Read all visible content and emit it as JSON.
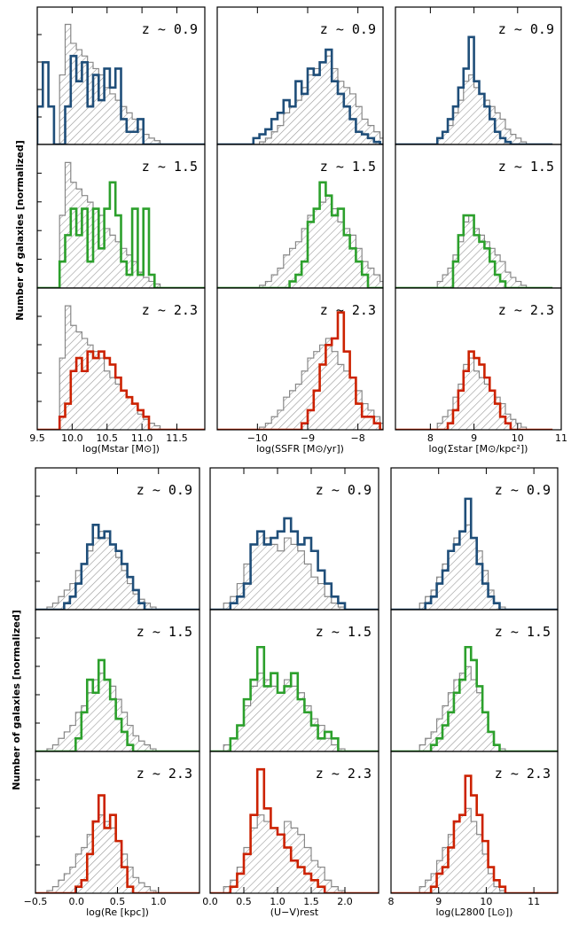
{
  "figure": {
    "ylabel_top": "Number of galaxies [normalized]",
    "ylabel_bottom": "Number of galaxies [normalized]",
    "redshift_labels": [
      "z ~ 0.9",
      "z ~ 1.5",
      "z ~ 2.3"
    ],
    "redshift_colors": [
      "#1f4e79",
      "#2ca02c",
      "#cc2200"
    ],
    "reference_hist_color": "#888888"
  },
  "chart_data": [
    {
      "type": "bar",
      "xlabel": "log(Mstar [M⊙])",
      "xlim": [
        9.5,
        11.9
      ],
      "ticks": [
        9.5,
        10.0,
        10.5,
        11.0,
        11.5
      ],
      "tick_labels": [
        "9.5",
        "10.0",
        "10.5",
        "11.0",
        "11.5"
      ],
      "bin_start": 9.5,
      "bin_width": 0.08,
      "reference": [
        0,
        0,
        0,
        0,
        0.55,
        0.95,
        0.8,
        0.75,
        0.7,
        0.65,
        0.6,
        0.55,
        0.45,
        0.4,
        0.35,
        0.3,
        0.25,
        0.2,
        0.12,
        0.08,
        0.05,
        0.03,
        0,
        0,
        0,
        0,
        0,
        0,
        0,
        0
      ],
      "series": [
        {
          "name": "z ~ 0.9",
          "values": [
            0.3,
            0.65,
            0.3,
            0,
            0,
            0.3,
            0.7,
            0.5,
            0.65,
            0.3,
            0.55,
            0.35,
            0.6,
            0.45,
            0.6,
            0.2,
            0.1,
            0.1,
            0.2,
            0,
            0,
            0,
            0,
            0,
            0,
            0,
            0,
            0,
            0,
            0
          ]
        },
        {
          "name": "z ~ 1.5",
          "values": [
            0,
            0,
            0,
            0,
            0.2,
            0.4,
            0.6,
            0.4,
            0.6,
            0.2,
            0.6,
            0.3,
            0.6,
            0.8,
            0.55,
            0.2,
            0.1,
            0.6,
            0.1,
            0.6,
            0.1,
            0,
            0,
            0,
            0,
            0,
            0,
            0,
            0,
            0
          ]
        },
        {
          "name": "z ~ 2.3",
          "values": [
            0,
            0,
            0,
            0,
            0.1,
            0.2,
            0.45,
            0.55,
            0.45,
            0.6,
            0.55,
            0.6,
            0.55,
            0.5,
            0.4,
            0.3,
            0.25,
            0.2,
            0.15,
            0.1,
            0,
            0,
            0,
            0,
            0,
            0,
            0,
            0,
            0,
            0
          ]
        }
      ]
    },
    {
      "type": "bar",
      "xlabel": "log(SSFR [M⊙/yr])",
      "xlim": [
        -10.8,
        -7.5
      ],
      "ticks": [
        -10,
        -9,
        -8
      ],
      "tick_labels": [
        "−10",
        "−9",
        "−8"
      ],
      "bin_start": -10.8,
      "bin_width": 0.12,
      "reference": [
        0,
        0,
        0,
        0,
        0,
        0,
        0,
        0.02,
        0.05,
        0.1,
        0.15,
        0.25,
        0.3,
        0.35,
        0.45,
        0.55,
        0.6,
        0.65,
        0.7,
        0.6,
        0.5,
        0.45,
        0.4,
        0.3,
        0.2,
        0.15,
        0.1,
        0.05,
        0,
        0
      ],
      "series": [
        {
          "name": "z ~ 0.9",
          "values": [
            0,
            0,
            0,
            0,
            0,
            0,
            0.05,
            0.08,
            0.12,
            0.2,
            0.25,
            0.35,
            0.3,
            0.5,
            0.4,
            0.6,
            0.55,
            0.65,
            0.75,
            0.5,
            0.4,
            0.3,
            0.2,
            0.1,
            0.08,
            0.05,
            0.02,
            0,
            0,
            0
          ]
        },
        {
          "name": "z ~ 1.5",
          "values": [
            0,
            0,
            0,
            0,
            0,
            0,
            0,
            0,
            0,
            0,
            0,
            0,
            0.05,
            0.1,
            0.2,
            0.5,
            0.6,
            0.8,
            0.7,
            0.55,
            0.6,
            0.4,
            0.3,
            0.2,
            0.1,
            0,
            0,
            0,
            0,
            0
          ]
        },
        {
          "name": "z ~ 2.3",
          "values": [
            0,
            0,
            0,
            0,
            0,
            0,
            0,
            0,
            0,
            0,
            0,
            0,
            0,
            0,
            0.05,
            0.15,
            0.3,
            0.5,
            0.65,
            0.7,
            0.9,
            0.6,
            0.4,
            0.2,
            0.1,
            0.1,
            0.05,
            0,
            0,
            0
          ]
        }
      ]
    },
    {
      "type": "bar",
      "xlabel": "log(Σstar [M⊙/kpc²])",
      "xlim": [
        7.2,
        11
      ],
      "ticks": [
        8,
        9,
        10,
        11
      ],
      "tick_labels": [
        "8",
        "9",
        "10",
        "11"
      ],
      "bin_start": 7.2,
      "bin_width": 0.12,
      "reference": [
        0,
        0,
        0,
        0,
        0,
        0,
        0,
        0,
        0.05,
        0.1,
        0.15,
        0.25,
        0.35,
        0.5,
        0.55,
        0.45,
        0.4,
        0.35,
        0.3,
        0.25,
        0.2,
        0.12,
        0.08,
        0.05,
        0.02,
        0,
        0,
        0,
        0,
        0
      ],
      "series": [
        {
          "name": "z ~ 0.9",
          "values": [
            0,
            0,
            0,
            0,
            0,
            0,
            0,
            0,
            0.05,
            0.1,
            0.2,
            0.3,
            0.45,
            0.6,
            0.85,
            0.5,
            0.4,
            0.3,
            0.2,
            0.1,
            0.05,
            0.02,
            0,
            0,
            0,
            0,
            0,
            0,
            0,
            0
          ]
        },
        {
          "name": "z ~ 1.5",
          "values": [
            0,
            0,
            0,
            0,
            0,
            0,
            0,
            0,
            0,
            0,
            0,
            0.2,
            0.4,
            0.55,
            0.55,
            0.4,
            0.35,
            0.3,
            0.2,
            0.1,
            0.05,
            0,
            0,
            0,
            0,
            0,
            0,
            0,
            0,
            0
          ]
        },
        {
          "name": "z ~ 2.3",
          "values": [
            0,
            0,
            0,
            0,
            0,
            0,
            0,
            0,
            0,
            0,
            0.05,
            0.15,
            0.3,
            0.45,
            0.6,
            0.55,
            0.5,
            0.4,
            0.3,
            0.2,
            0.1,
            0.05,
            0,
            0,
            0,
            0,
            0,
            0,
            0,
            0
          ]
        }
      ]
    },
    {
      "type": "bar",
      "xlabel": "log(Re [kpc])",
      "xlim": [
        -0.5,
        1.5
      ],
      "ticks": [
        -0.5,
        0.0,
        0.5,
        1.0
      ],
      "tick_labels": [
        "−0.5",
        "0.0",
        "0.5",
        "1.0"
      ],
      "bin_start": -0.5,
      "bin_width": 0.07,
      "reference": [
        0,
        0,
        0.02,
        0.05,
        0.1,
        0.15,
        0.2,
        0.3,
        0.35,
        0.45,
        0.55,
        0.6,
        0.55,
        0.5,
        0.4,
        0.3,
        0.2,
        0.12,
        0.08,
        0.05,
        0.02,
        0,
        0,
        0,
        0,
        0,
        0,
        0,
        0,
        0
      ],
      "series": [
        {
          "name": "z ~ 0.9",
          "values": [
            0,
            0,
            0,
            0,
            0,
            0.05,
            0.1,
            0.2,
            0.35,
            0.5,
            0.65,
            0.55,
            0.6,
            0.5,
            0.45,
            0.35,
            0.25,
            0.15,
            0.05,
            0,
            0,
            0,
            0,
            0,
            0,
            0,
            0,
            0,
            0,
            0
          ]
        },
        {
          "name": "z ~ 1.5",
          "values": [
            0,
            0,
            0,
            0,
            0,
            0,
            0,
            0.1,
            0.3,
            0.55,
            0.45,
            0.7,
            0.55,
            0.4,
            0.25,
            0.15,
            0.05,
            0,
            0,
            0,
            0,
            0,
            0,
            0,
            0,
            0,
            0,
            0,
            0,
            0
          ]
        },
        {
          "name": "z ~ 2.3",
          "values": [
            0,
            0,
            0,
            0,
            0,
            0,
            0,
            0.05,
            0.1,
            0.3,
            0.55,
            0.75,
            0.5,
            0.6,
            0.4,
            0.2,
            0.05,
            0,
            0,
            0,
            0,
            0,
            0,
            0,
            0,
            0,
            0,
            0,
            0,
            0
          ]
        }
      ]
    },
    {
      "type": "bar",
      "xlabel": "(U−V)rest",
      "xlim": [
        0,
        2.5
      ],
      "ticks": [
        0.0,
        0.5,
        1.0,
        1.5,
        2.0
      ],
      "tick_labels": [
        "0.0",
        "0.5",
        "1.0",
        "1.5",
        "2.0"
      ],
      "bin_start": 0,
      "bin_width": 0.1,
      "reference": [
        0,
        0,
        0.05,
        0.1,
        0.2,
        0.35,
        0.5,
        0.6,
        0.55,
        0.5,
        0.45,
        0.55,
        0.5,
        0.45,
        0.35,
        0.25,
        0.2,
        0.1,
        0.05,
        0.02,
        0,
        0,
        0,
        0,
        0,
        0,
        0,
        0,
        0,
        0
      ],
      "series": [
        {
          "name": "z ~ 0.9",
          "values": [
            0,
            0,
            0,
            0.05,
            0.1,
            0.2,
            0.5,
            0.6,
            0.5,
            0.55,
            0.6,
            0.7,
            0.6,
            0.5,
            0.55,
            0.45,
            0.3,
            0.2,
            0.1,
            0.05,
            0,
            0,
            0,
            0,
            0,
            0,
            0,
            0,
            0,
            0
          ]
        },
        {
          "name": "z ~ 1.5",
          "values": [
            0,
            0,
            0,
            0.1,
            0.2,
            0.4,
            0.55,
            0.8,
            0.5,
            0.6,
            0.45,
            0.5,
            0.6,
            0.4,
            0.3,
            0.2,
            0.1,
            0.15,
            0.1,
            0,
            0,
            0,
            0,
            0,
            0,
            0,
            0,
            0,
            0,
            0
          ]
        },
        {
          "name": "z ~ 2.3",
          "values": [
            0,
            0,
            0,
            0.05,
            0.15,
            0.3,
            0.6,
            0.95,
            0.65,
            0.5,
            0.45,
            0.35,
            0.25,
            0.2,
            0.15,
            0.1,
            0.05,
            0,
            0,
            0,
            0,
            0,
            0,
            0,
            0,
            0,
            0,
            0,
            0,
            0
          ]
        }
      ]
    },
    {
      "type": "bar",
      "xlabel": "log(L2800 [L⊙])",
      "xlim": [
        8,
        11.5
      ],
      "ticks": [
        8,
        9,
        10,
        11
      ],
      "tick_labels": [
        "8",
        "9",
        "10",
        "11"
      ],
      "bin_start": 8,
      "bin_width": 0.12,
      "reference": [
        0,
        0,
        0,
        0,
        0,
        0.05,
        0.1,
        0.15,
        0.25,
        0.35,
        0.45,
        0.55,
        0.6,
        0.65,
        0.55,
        0.45,
        0.3,
        0.15,
        0.05,
        0.02,
        0,
        0,
        0,
        0,
        0,
        0,
        0,
        0,
        0,
        0
      ],
      "series": [
        {
          "name": "z ~ 0.9",
          "values": [
            0,
            0,
            0,
            0,
            0,
            0,
            0.05,
            0.1,
            0.2,
            0.3,
            0.45,
            0.5,
            0.6,
            0.85,
            0.55,
            0.35,
            0.2,
            0.1,
            0.05,
            0,
            0,
            0,
            0,
            0,
            0,
            0,
            0,
            0,
            0,
            0
          ]
        },
        {
          "name": "z ~ 1.5",
          "values": [
            0,
            0,
            0,
            0,
            0,
            0,
            0,
            0.05,
            0.1,
            0.2,
            0.3,
            0.45,
            0.55,
            0.8,
            0.7,
            0.5,
            0.3,
            0.15,
            0.05,
            0,
            0,
            0,
            0,
            0,
            0,
            0,
            0,
            0,
            0,
            0
          ]
        },
        {
          "name": "z ~ 2.3",
          "values": [
            0,
            0,
            0,
            0,
            0,
            0,
            0,
            0.05,
            0.15,
            0.2,
            0.35,
            0.55,
            0.6,
            0.9,
            0.75,
            0.6,
            0.4,
            0.2,
            0.1,
            0.05,
            0,
            0,
            0,
            0,
            0,
            0,
            0,
            0,
            0,
            0
          ]
        }
      ]
    }
  ]
}
